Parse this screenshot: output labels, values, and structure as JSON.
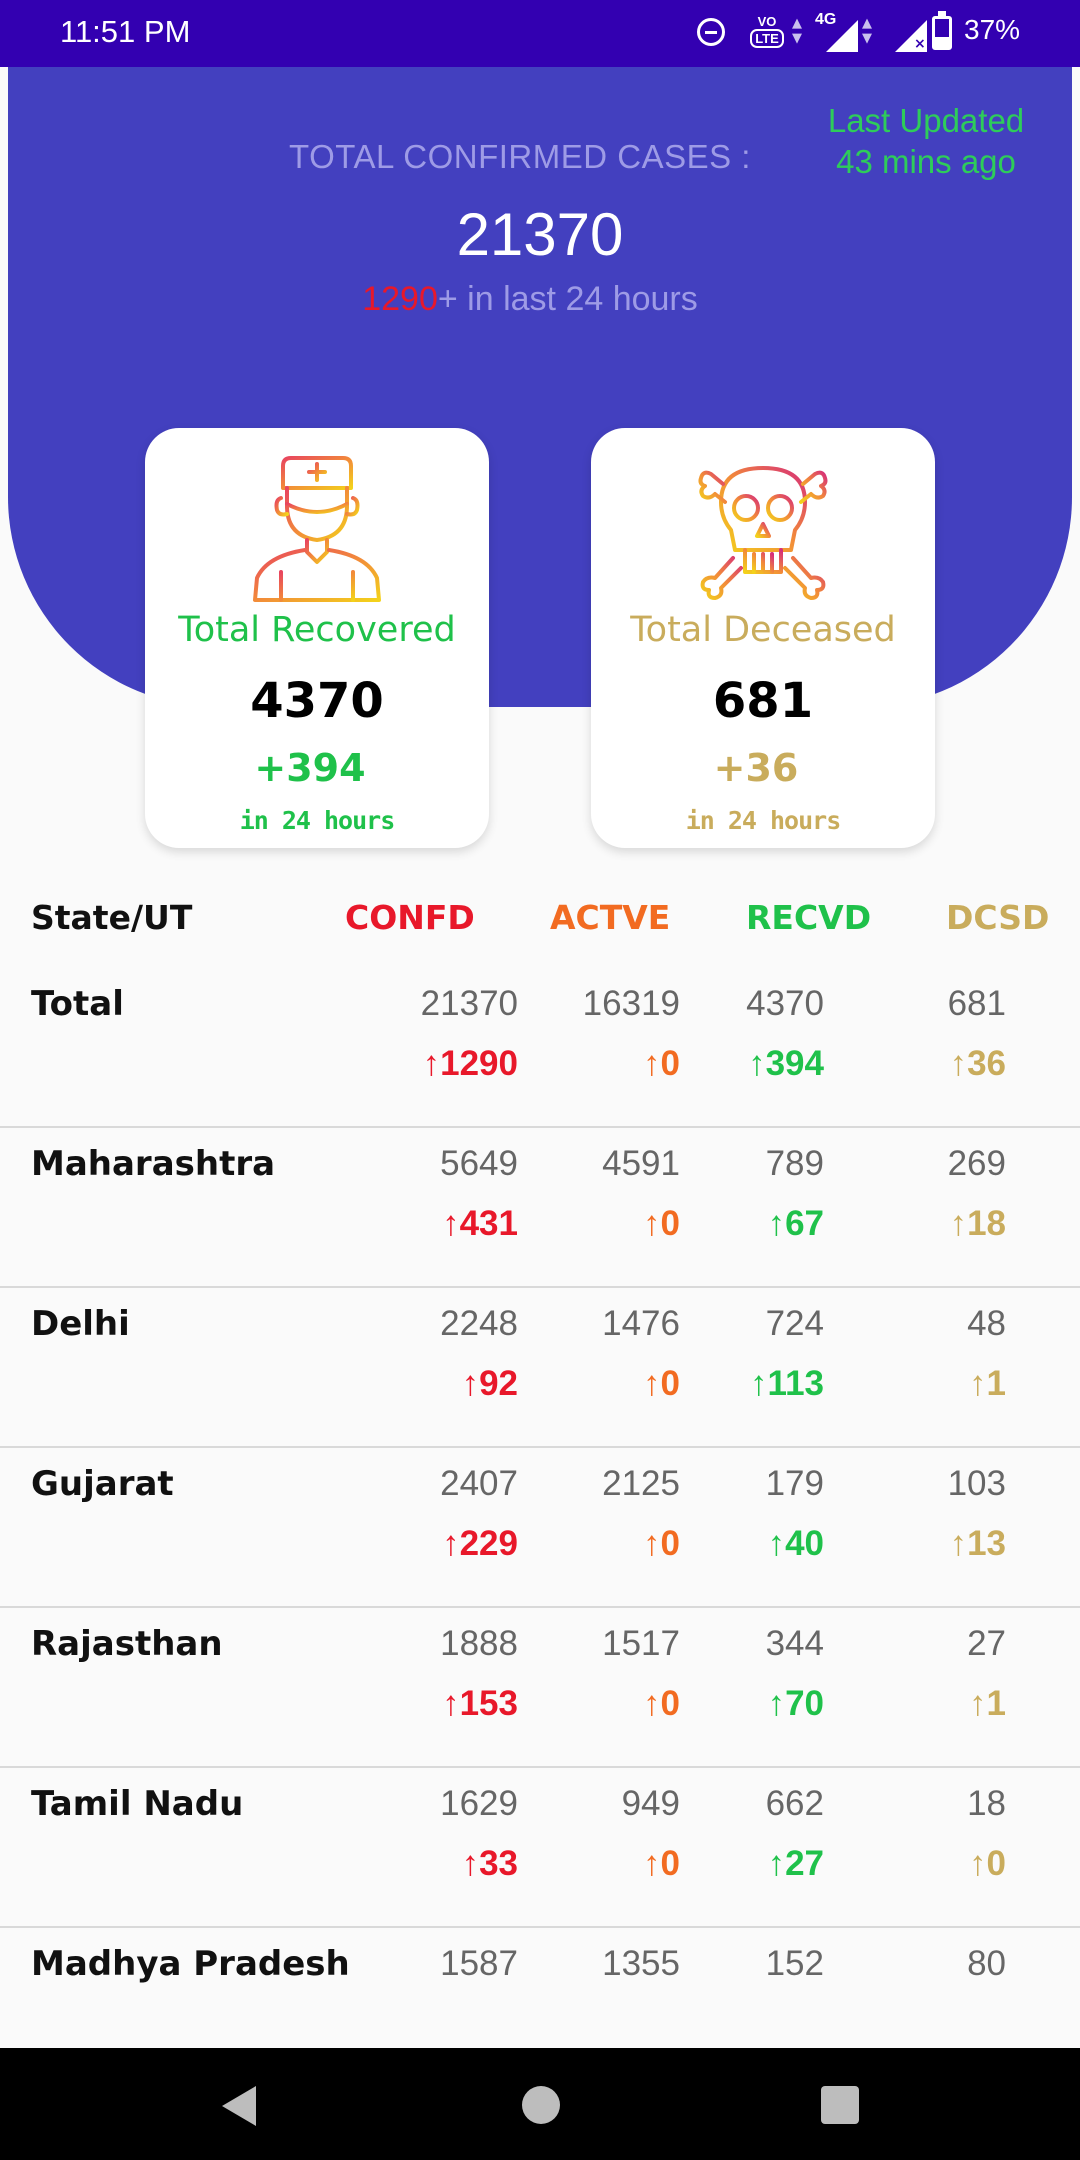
{
  "status_bar": {
    "time": "11:51 PM",
    "network": "4G",
    "volte_top": "VO",
    "volte_bottom": "LTE",
    "battery_percent": "37%",
    "battery_level": 0.37
  },
  "header": {
    "last_updated_line1": "Last Updated",
    "last_updated_line2": "43 mins ago",
    "total_confirmed_label": "TOTAL CONFIRMED CASES :",
    "total_confirmed_value": "21370",
    "delta_value": "1290",
    "delta_suffix": "+ in last 24 hours"
  },
  "cards": {
    "recovered": {
      "icon": "doctor-icon",
      "label": "Total Recovered",
      "value": "4370",
      "delta": "+394",
      "sub": "in 24 hours"
    },
    "deceased": {
      "icon": "skull-crossbones-icon",
      "label": "Total Deceased",
      "value": "681",
      "delta": "+36",
      "sub": "in 24 hours"
    }
  },
  "table": {
    "headers": {
      "state": "State/UT",
      "confirmed": "CONFD",
      "active": "ACTVE",
      "recovered": "RECVD",
      "deceased": "DCSD"
    },
    "rows": [
      {
        "name": "Total",
        "confirmed": "21370",
        "active": "16319",
        "recovered": "4370",
        "deceased": "681",
        "d_confirmed": "↑1290",
        "d_active": "↑0",
        "d_recovered": "↑394",
        "d_deceased": "↑36"
      },
      {
        "name": "Maharashtra",
        "confirmed": "5649",
        "active": "4591",
        "recovered": "789",
        "deceased": "269",
        "d_confirmed": "↑431",
        "d_active": "↑0",
        "d_recovered": "↑67",
        "d_deceased": "↑18"
      },
      {
        "name": "Delhi",
        "confirmed": "2248",
        "active": "1476",
        "recovered": "724",
        "deceased": "48",
        "d_confirmed": "↑92",
        "d_active": "↑0",
        "d_recovered": "↑113",
        "d_deceased": "↑1"
      },
      {
        "name": "Gujarat",
        "confirmed": "2407",
        "active": "2125",
        "recovered": "179",
        "deceased": "103",
        "d_confirmed": "↑229",
        "d_active": "↑0",
        "d_recovered": "↑40",
        "d_deceased": "↑13"
      },
      {
        "name": "Rajasthan",
        "confirmed": "1888",
        "active": "1517",
        "recovered": "344",
        "deceased": "27",
        "d_confirmed": "↑153",
        "d_active": "↑0",
        "d_recovered": "↑70",
        "d_deceased": "↑1"
      },
      {
        "name": "Tamil Nadu",
        "confirmed": "1629",
        "active": "949",
        "recovered": "662",
        "deceased": "18",
        "d_confirmed": "↑33",
        "d_active": "↑0",
        "d_recovered": "↑27",
        "d_deceased": "↑0"
      },
      {
        "name": "Madhya Pradesh",
        "confirmed": "1587",
        "active": "1355",
        "recovered": "152",
        "deceased": "80",
        "d_confirmed": "",
        "d_active": "",
        "d_recovered": "",
        "d_deceased": ""
      }
    ]
  },
  "colors": {
    "header_bg": "#4340bf",
    "status_bar_bg": "#3300b1",
    "confirmed": "#e8182a",
    "active": "#f26b21",
    "recovered": "#1fc14a",
    "deceased": "#c9ac5c"
  },
  "nav": {
    "back": "back-icon",
    "home": "home-icon",
    "recents": "recents-icon"
  }
}
